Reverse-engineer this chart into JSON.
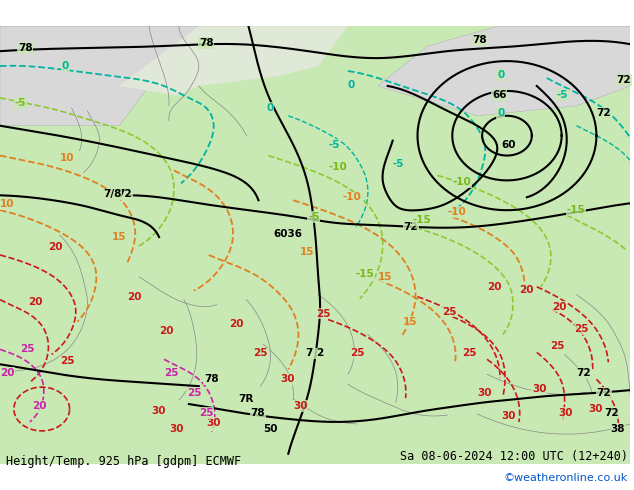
{
  "title_left": "Height/Temp. 925 hPa [gdpm] ECMWF",
  "title_right": "Sa 08-06-2024 12:00 UTC (12+240)",
  "credit": "©weatheronline.co.uk",
  "bg_color": "#aad4a0",
  "land_color": "#c8e8b4",
  "sea_color": "#d8eef8",
  "mountain_color": "#e8e8e8",
  "title_fontsize": 9,
  "credit_color": "#0055cc"
}
